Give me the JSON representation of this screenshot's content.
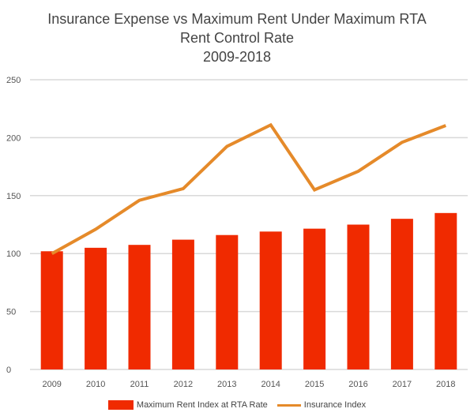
{
  "chart_data": {
    "type": "bar+line",
    "title": [
      "Insurance Expense vs Maximum Rent Under Maximum RTA",
      "Rent Control Rate",
      "2009-2018"
    ],
    "categories": [
      "2009",
      "2010",
      "2011",
      "2012",
      "2013",
      "2014",
      "2015",
      "2016",
      "2017",
      "2018"
    ],
    "ylim": [
      0,
      250
    ],
    "yticks": [
      "0",
      "50",
      "100",
      "150",
      "200",
      "250"
    ],
    "grid": true,
    "legend_position": "bottom",
    "series": [
      {
        "name": "Maximum Rent Index at RTA Rate",
        "type": "bar",
        "color": "#f02a00",
        "values": [
          102,
          105,
          107.5,
          112,
          116,
          119,
          121.5,
          125,
          130,
          135
        ]
      },
      {
        "name": "Insurance Index",
        "type": "line",
        "color": "#e58a2a",
        "values": [
          100,
          121,
          146,
          156,
          192.5,
          211,
          155,
          171,
          196,
          210.5
        ]
      }
    ]
  }
}
